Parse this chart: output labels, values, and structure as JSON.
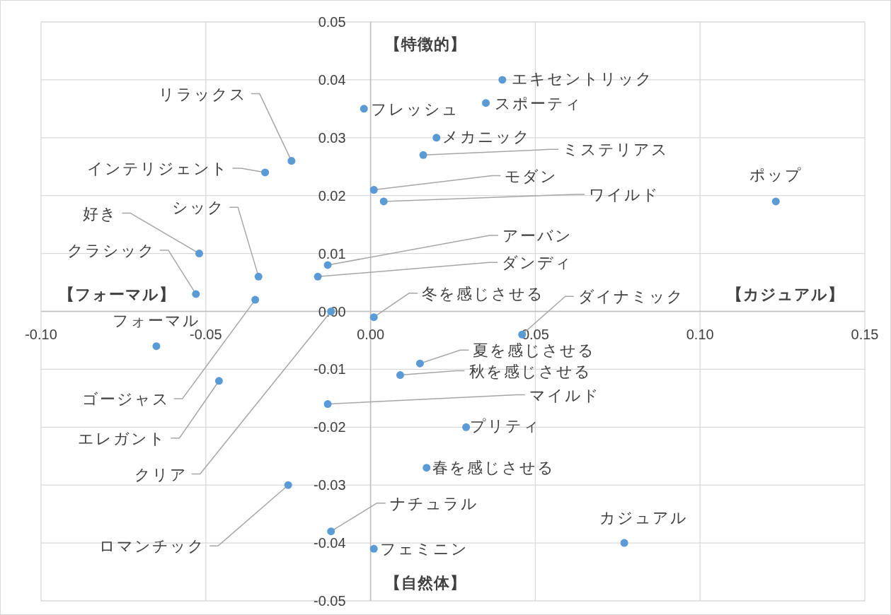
{
  "chart_data": {
    "type": "scatter",
    "xlim": [
      -0.1,
      0.15
    ],
    "ylim": [
      -0.05,
      0.05
    ],
    "xticks": [
      {
        "value": -0.1,
        "label": "-0.10"
      },
      {
        "value": -0.05,
        "label": "-0.05"
      },
      {
        "value": 0,
        "label": "0.00"
      },
      {
        "value": 0.05,
        "label": "0.05"
      },
      {
        "value": 0.1,
        "label": "0.10"
      },
      {
        "value": 0.15,
        "label": "0.15"
      }
    ],
    "yticks": [
      {
        "value": -0.05,
        "label": "-0.05"
      },
      {
        "value": -0.04,
        "label": "-0.04"
      },
      {
        "value": -0.03,
        "label": "-0.03"
      },
      {
        "value": -0.02,
        "label": "-0.02"
      },
      {
        "value": -0.01,
        "label": "-0.01"
      },
      {
        "value": 0,
        "label": "0.00"
      },
      {
        "value": 0.01,
        "label": "0.01"
      },
      {
        "value": 0.02,
        "label": "0.02"
      },
      {
        "value": 0.03,
        "label": "0.03"
      },
      {
        "value": 0.04,
        "label": "0.04"
      },
      {
        "value": 0.05,
        "label": "0.05"
      }
    ],
    "grid": true,
    "marker": "circle",
    "series": [
      {
        "color": "#5b9bd5",
        "x": [
          0.04,
          0.035,
          -0.002,
          0.02,
          0.016,
          0.001,
          0.004,
          0.123,
          -0.024,
          -0.032,
          -0.052,
          -0.034,
          -0.053,
          -0.013,
          -0.016,
          -0.035,
          -0.012,
          0.001,
          0.046,
          -0.065,
          0.015,
          0.009,
          -0.046,
          -0.013,
          0.029,
          0.017,
          -0.025,
          -0.012,
          0.001,
          0.077
        ],
        "values": [
          0.04,
          0.036,
          0.035,
          0.03,
          0.027,
          0.021,
          0.019,
          0.019,
          0.026,
          0.024,
          0.01,
          0.006,
          0.003,
          0.008,
          0.006,
          0.002,
          0.0,
          -0.001,
          -0.004,
          -0.006,
          -0.009,
          -0.011,
          -0.012,
          -0.016,
          -0.02,
          -0.027,
          -0.03,
          -0.038,
          -0.041,
          -0.04
        ]
      }
    ],
    "annotations": [
      {
        "text": "エキセントリック",
        "x": 0.04,
        "y": 0.04
      },
      {
        "text": "スポーティ",
        "x": 0.035,
        "y": 0.036
      },
      {
        "text": "フレッシュ",
        "x": -0.002,
        "y": 0.035
      },
      {
        "text": "メカニック",
        "x": 0.02,
        "y": 0.03
      },
      {
        "text": "ミステリアス",
        "x": 0.016,
        "y": 0.027
      },
      {
        "text": "モダン",
        "x": 0.001,
        "y": 0.021
      },
      {
        "text": "ワイルド",
        "x": 0.004,
        "y": 0.019
      },
      {
        "text": "ポップ",
        "x": 0.123,
        "y": 0.019
      },
      {
        "text": "リラックス",
        "x": -0.024,
        "y": 0.026
      },
      {
        "text": "インテリジェント",
        "x": -0.032,
        "y": 0.024
      },
      {
        "text": "好き",
        "x": -0.052,
        "y": 0.01
      },
      {
        "text": "シック",
        "x": -0.034,
        "y": 0.006
      },
      {
        "text": "クラシック",
        "x": -0.053,
        "y": 0.003
      },
      {
        "text": "アーバン",
        "x": -0.013,
        "y": 0.008
      },
      {
        "text": "ダンディ",
        "x": -0.016,
        "y": 0.006
      },
      {
        "text": "ゴージャス",
        "x": -0.035,
        "y": 0.002
      },
      {
        "text": "クリア",
        "x": -0.012,
        "y": 0.0
      },
      {
        "text": "冬を感じさせる",
        "x": 0.001,
        "y": -0.001
      },
      {
        "text": "ダイナミック",
        "x": 0.046,
        "y": -0.004
      },
      {
        "text": "フォーマル",
        "x": -0.065,
        "y": -0.006
      },
      {
        "text": "夏を感じさせる",
        "x": 0.015,
        "y": -0.009
      },
      {
        "text": "秋を感じさせる",
        "x": 0.009,
        "y": -0.011
      },
      {
        "text": "エレガント",
        "x": -0.046,
        "y": -0.012
      },
      {
        "text": "マイルド",
        "x": -0.013,
        "y": -0.016
      },
      {
        "text": "プリティ",
        "x": 0.029,
        "y": -0.02
      },
      {
        "text": "春を感じさせる",
        "x": 0.017,
        "y": -0.027
      },
      {
        "text": "ロマンチック",
        "x": -0.025,
        "y": -0.03
      },
      {
        "text": "ナチュラル",
        "x": -0.012,
        "y": -0.038
      },
      {
        "text": "フェミニン",
        "x": 0.001,
        "y": -0.041
      },
      {
        "text": "カジュアル",
        "x": 0.077,
        "y": -0.04
      },
      "【特徴的】",
      "【自然体】",
      "【フォーマル】",
      "【カジュアル】"
    ]
  }
}
